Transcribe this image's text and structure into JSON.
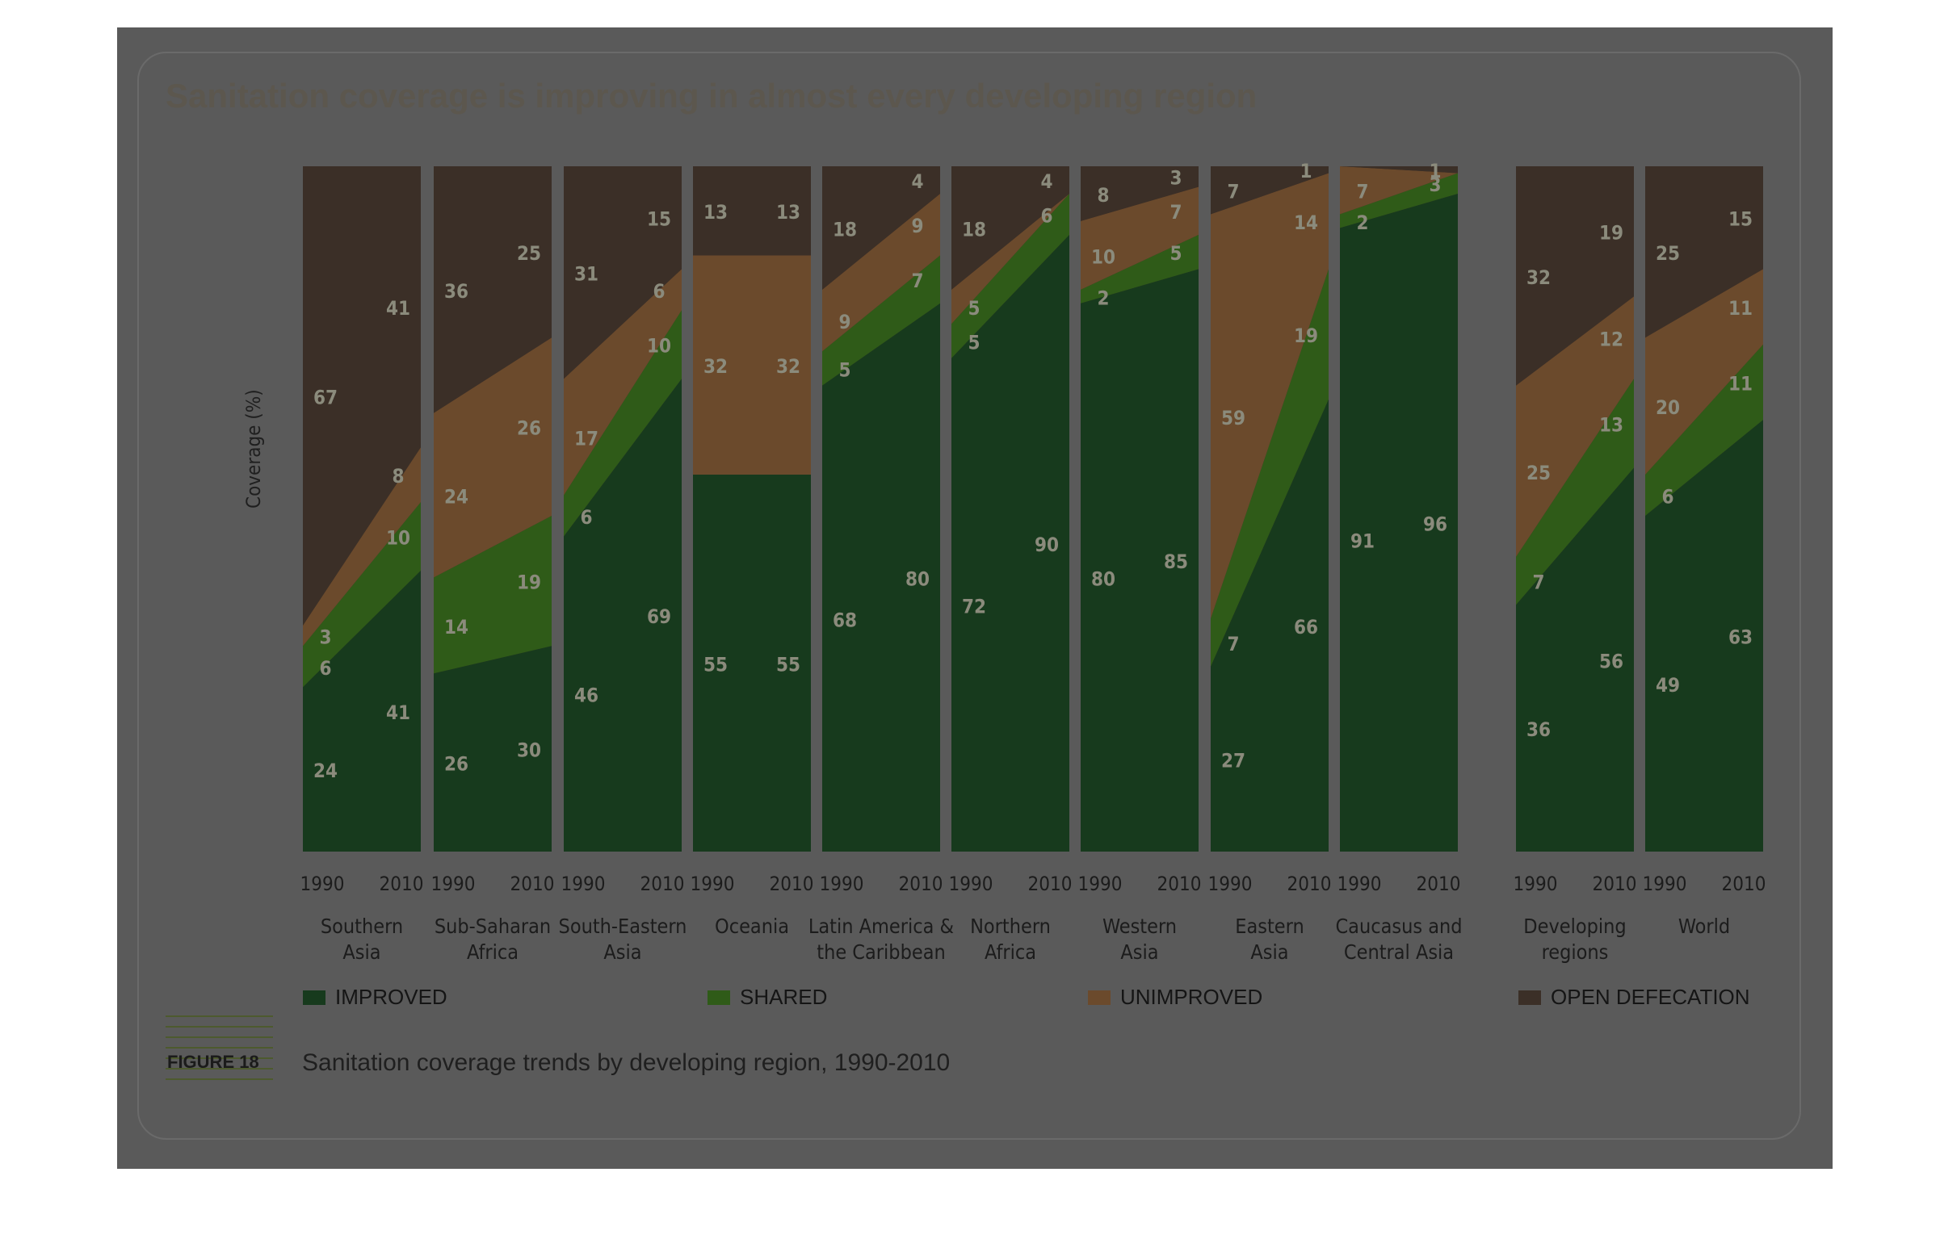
{
  "title": "Sanitation coverage is improving in almost every developing region",
  "caption": {
    "tag": "FIGURE 18",
    "text": "Sanitation coverage trends by developing region, 1990-2010"
  },
  "colors": {
    "improved": "#173a1d",
    "shared": "#2f5b18",
    "unimproved": "#6b4a2c",
    "open_defecation": "#3b2f27",
    "panel": "#5a5a5a",
    "label": "#8b8b7c"
  },
  "legend": [
    {
      "label": "IMPROVED",
      "color": "#173a1d"
    },
    {
      "label": "SHARED",
      "color": "#2f5b18"
    },
    {
      "label": "UNIMPROVED",
      "color": "#6b4a2c"
    },
    {
      "label": "OPEN DEFECATION",
      "color": "#3b2f27"
    }
  ],
  "chart_data": {
    "type": "area",
    "ylabel": "Coverage (%)",
    "ylim": [
      0,
      100
    ],
    "x": [
      "1990",
      "2010"
    ],
    "categories": [
      "Southern Asia",
      "Sub-Saharan Africa",
      "South-Eastern Asia",
      "Oceania",
      "Latin America & the Caribbean",
      "Northern Africa",
      "Western Asia",
      "Eastern Asia",
      "Caucasus and Central Asia",
      "Developing regions",
      "World"
    ],
    "category_lines": [
      [
        "Southern",
        "Asia"
      ],
      [
        "Sub-Saharan",
        "Africa"
      ],
      [
        "South-Eastern",
        "Asia"
      ],
      [
        "Oceania",
        ""
      ],
      [
        "Latin America &",
        "the Caribbean"
      ],
      [
        "Northern",
        "Africa"
      ],
      [
        "Western",
        "Asia"
      ],
      [
        "Eastern",
        "Asia"
      ],
      [
        "Caucasus and",
        "Central Asia"
      ],
      [
        "Developing",
        "regions"
      ],
      [
        "World",
        ""
      ]
    ],
    "series_order": [
      "Improved",
      "Shared",
      "Unimproved",
      "Open defecation"
    ],
    "regions": [
      {
        "name": "Southern Asia",
        "improved": [
          24,
          41
        ],
        "shared": [
          6,
          10
        ],
        "unimproved": [
          3,
          8
        ],
        "open_defecation": [
          67,
          41
        ]
      },
      {
        "name": "Sub-Saharan Africa",
        "improved": [
          26,
          30
        ],
        "shared": [
          14,
          19
        ],
        "unimproved": [
          24,
          26
        ],
        "open_defecation": [
          36,
          25
        ]
      },
      {
        "name": "South-Eastern Asia",
        "improved": [
          46,
          69
        ],
        "shared": [
          6,
          10
        ],
        "unimproved": [
          17,
          6
        ],
        "open_defecation": [
          31,
          15
        ]
      },
      {
        "name": "Oceania",
        "improved": [
          55,
          55
        ],
        "shared": [
          0,
          0
        ],
        "unimproved": [
          32,
          32
        ],
        "open_defecation": [
          13,
          13
        ]
      },
      {
        "name": "Latin America & the Caribbean",
        "improved": [
          68,
          80
        ],
        "shared": [
          5,
          7
        ],
        "unimproved": [
          9,
          9
        ],
        "open_defecation": [
          18,
          4
        ]
      },
      {
        "name": "Northern Africa",
        "improved": [
          72,
          90
        ],
        "shared": [
          5,
          6
        ],
        "unimproved": [
          5,
          0
        ],
        "open_defecation": [
          18,
          4
        ]
      },
      {
        "name": "Western Asia",
        "improved": [
          80,
          85
        ],
        "shared": [
          2,
          5
        ],
        "unimproved": [
          10,
          7
        ],
        "open_defecation": [
          8,
          3
        ]
      },
      {
        "name": "Eastern Asia",
        "improved": [
          27,
          66
        ],
        "shared": [
          7,
          19
        ],
        "unimproved": [
          59,
          14
        ],
        "open_defecation": [
          7,
          1
        ]
      },
      {
        "name": "Caucasus and Central Asia",
        "improved": [
          91,
          96
        ],
        "shared": [
          2,
          3
        ],
        "unimproved": [
          7,
          0
        ],
        "open_defecation": [
          0,
          1
        ]
      },
      {
        "name": "Developing regions",
        "improved": [
          36,
          56
        ],
        "shared": [
          7,
          13
        ],
        "unimproved": [
          25,
          12
        ],
        "open_defecation": [
          32,
          19
        ]
      },
      {
        "name": "World",
        "improved": [
          49,
          63
        ],
        "shared": [
          6,
          11
        ],
        "unimproved": [
          20,
          11
        ],
        "open_defecation": [
          25,
          15
        ]
      }
    ],
    "value_labels": [
      {
        "region": 0,
        "labels": [
          [
            "24",
            null
          ],
          [
            "41",
            null
          ],
          [
            "6",
            null
          ],
          [
            "10",
            null
          ],
          [
            "3",
            null
          ],
          [
            "8",
            null
          ],
          [
            "67",
            null
          ],
          [
            "41",
            null
          ]
        ]
      },
      {
        "region": 1,
        "labels": [
          [
            "26",
            null
          ],
          [
            "30",
            null
          ],
          [
            "14",
            null
          ],
          [
            "19",
            null
          ],
          [
            "24",
            null
          ],
          [
            "26",
            null
          ],
          [
            "36",
            null
          ],
          [
            "25",
            null
          ]
        ]
      },
      {
        "region": 2,
        "labels": [
          [
            "46",
            null
          ],
          [
            "69",
            null
          ],
          [
            "6",
            null
          ],
          [
            "10",
            null
          ],
          [
            "17",
            null
          ],
          [
            "6",
            null
          ],
          [
            "31",
            null
          ],
          [
            "15",
            null
          ]
        ]
      },
      {
        "region": 3,
        "labels": [
          [
            "55",
            null
          ],
          [
            "55",
            null
          ],
          [
            "",
            null
          ],
          [
            "",
            null
          ],
          [
            "32",
            null
          ],
          [
            "32",
            null
          ],
          [
            "13",
            null
          ],
          [
            "13",
            null
          ]
        ]
      },
      {
        "region": 4,
        "labels": [
          [
            "68",
            null
          ],
          [
            "80",
            null
          ],
          [
            "5",
            null
          ],
          [
            "7",
            null
          ],
          [
            "9",
            null
          ],
          [
            "9",
            null
          ],
          [
            "18",
            null
          ],
          [
            "4",
            null
          ]
        ]
      },
      {
        "region": 5,
        "labels": [
          [
            "72",
            null
          ],
          [
            "90",
            null
          ],
          [
            "5",
            null
          ],
          [
            "6",
            null
          ],
          [
            "5",
            null
          ],
          [
            "",
            null
          ],
          [
            "18",
            null
          ],
          [
            "4",
            null
          ]
        ]
      },
      {
        "region": 6,
        "labels": [
          [
            "80",
            null
          ],
          [
            "85",
            null
          ],
          [
            "2",
            null
          ],
          [
            "5",
            null
          ],
          [
            "10",
            null
          ],
          [
            "7",
            null
          ],
          [
            "8",
            null
          ],
          [
            "3",
            null
          ]
        ]
      },
      {
        "region": 7,
        "labels": [
          [
            "27",
            null
          ],
          [
            "66",
            null
          ],
          [
            "7",
            null
          ],
          [
            "19",
            null
          ],
          [
            "59",
            null
          ],
          [
            "14",
            null
          ],
          [
            "7",
            null
          ],
          [
            "1",
            null
          ]
        ]
      },
      {
        "region": 8,
        "labels": [
          [
            "91",
            null
          ],
          [
            "96",
            null
          ],
          [
            "2",
            null
          ],
          [
            "3",
            null
          ],
          [
            "7",
            null
          ],
          [
            "",
            null
          ],
          [
            "",
            null
          ],
          [
            "1",
            null
          ]
        ]
      },
      {
        "region": 9,
        "labels": [
          [
            "36",
            null
          ],
          [
            "56",
            null
          ],
          [
            "7",
            null
          ],
          [
            "13",
            null
          ],
          [
            "25",
            null
          ],
          [
            "12",
            null
          ],
          [
            "32",
            null
          ],
          [
            "19",
            null
          ]
        ]
      },
      {
        "region": 10,
        "labels": [
          [
            "49",
            null
          ],
          [
            "63",
            null
          ],
          [
            "6",
            null
          ],
          [
            "11",
            null
          ],
          [
            "20",
            null
          ],
          [
            "11",
            null
          ],
          [
            "25",
            null
          ],
          [
            "15",
            null
          ]
        ]
      }
    ]
  }
}
